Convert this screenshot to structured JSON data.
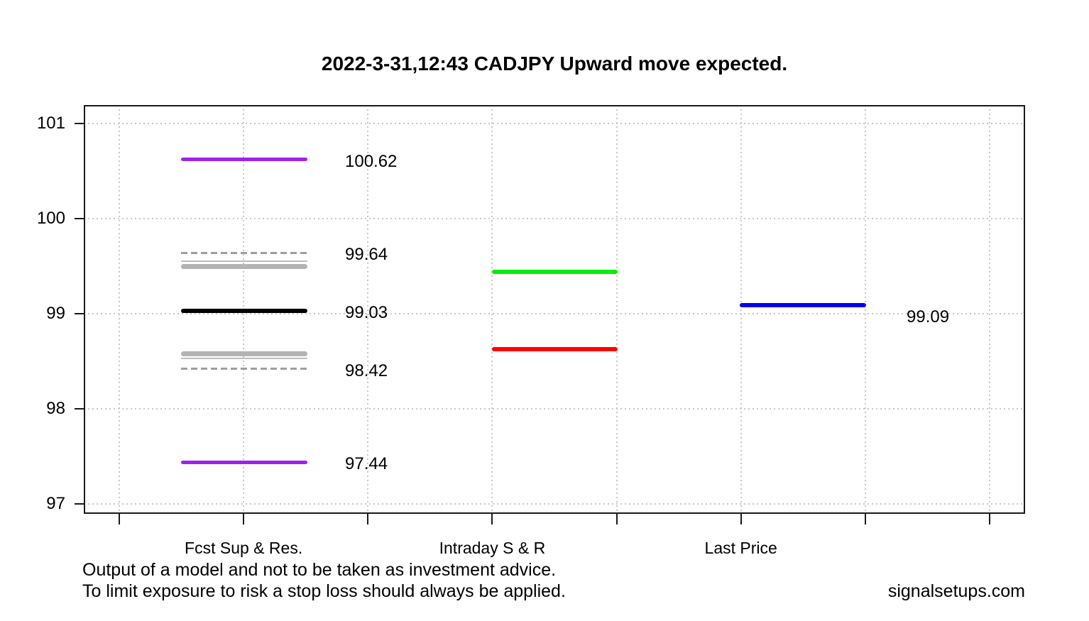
{
  "chart_data": {
    "type": "line-segments",
    "title": "2022-3-31,12:43 CADJPY Upward move expected.",
    "y_axis": {
      "ticks": [
        101,
        100,
        99,
        98,
        97
      ],
      "range": [
        96.9,
        101.2
      ]
    },
    "x_axis": {
      "tick_count": 8,
      "categories": [
        {
          "key": "fcst",
          "label": "Fcst Sup & Res."
        },
        {
          "key": "intraday",
          "label": "Intraday S & R"
        },
        {
          "key": "last",
          "label": "Last Price"
        }
      ]
    },
    "grid": "dotted",
    "legend_position": "none",
    "segments": [
      {
        "group": "fcst",
        "value": 100.62,
        "label": "100.62",
        "color": "purple",
        "thickness": 5,
        "style": "solid"
      },
      {
        "group": "fcst",
        "value": 99.64,
        "label": "99.64",
        "color": "gray_dashed",
        "thickness": 3,
        "style": "dashed"
      },
      {
        "group": "fcst",
        "value": 99.55,
        "label": "",
        "color": "gray_thin",
        "thickness": 2,
        "style": "solid"
      },
      {
        "group": "fcst",
        "value": 99.5,
        "label": "",
        "color": "gray_thick",
        "thickness": 7,
        "style": "solid"
      },
      {
        "group": "fcst",
        "value": 99.03,
        "label": "99.03",
        "color": "black",
        "thickness": 6,
        "style": "solid"
      },
      {
        "group": "fcst",
        "value": 98.58,
        "label": "",
        "color": "gray_thick",
        "thickness": 7,
        "style": "solid"
      },
      {
        "group": "fcst",
        "value": 98.53,
        "label": "",
        "color": "gray_thin",
        "thickness": 2,
        "style": "solid"
      },
      {
        "group": "fcst",
        "value": 98.42,
        "label": "98.42",
        "color": "gray_dashed",
        "thickness": 3,
        "style": "dashed"
      },
      {
        "group": "fcst",
        "value": 97.44,
        "label": "97.44",
        "color": "purple",
        "thickness": 5,
        "style": "solid"
      },
      {
        "group": "intraday",
        "value": 99.44,
        "label": "",
        "color": "green",
        "thickness": 6,
        "style": "solid"
      },
      {
        "group": "intraday",
        "value": 98.63,
        "label": "",
        "color": "red",
        "thickness": 6,
        "style": "solid"
      },
      {
        "group": "last",
        "value": 99.09,
        "label": "99.09",
        "color": "blue",
        "thickness": 6,
        "style": "solid",
        "label_dy": 17
      }
    ]
  },
  "colors": {
    "purple": "#a020f0",
    "black": "#000000",
    "gray_thick": "#b3b3b3",
    "gray_thin": "#bdbdbd",
    "gray_dashed": "#9e9e9e",
    "green": "#00ee00",
    "red": "#ff0000",
    "blue": "#0000ee",
    "grid": "#c7c7c7",
    "axis": "#1a1a1a",
    "text": "#000000"
  },
  "footer": {
    "disclaimer_line1": "Output of a model and not to be taken as investment advice.",
    "disclaimer_line2": "To limit exposure to risk a stop loss should always be applied.",
    "watermark": "signalsetups.com"
  }
}
